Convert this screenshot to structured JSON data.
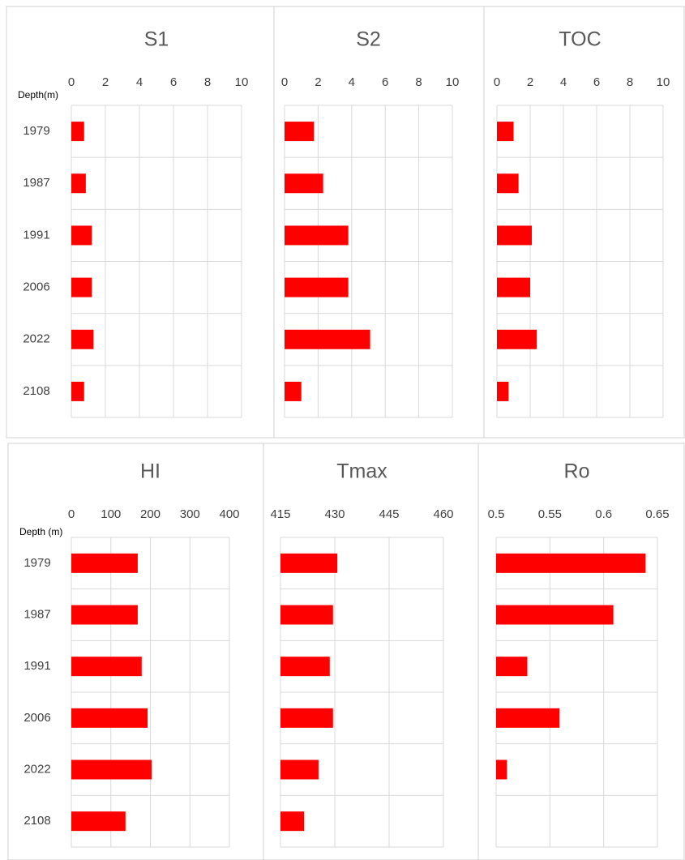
{
  "chart_data": [
    {
      "type": "bar",
      "orientation": "horizontal",
      "title": "S1",
      "y_label": "Depth(m)",
      "categories": [
        "1979",
        "1987",
        "1991",
        "2006",
        "2022",
        "2108"
      ],
      "values": [
        0.75,
        0.85,
        1.2,
        1.2,
        1.3,
        0.75
      ],
      "color": "#ff0000",
      "xlim": [
        0,
        10
      ],
      "xticks": [
        0,
        2,
        4,
        6,
        8,
        10
      ],
      "grid": true
    },
    {
      "type": "bar",
      "orientation": "horizontal",
      "title": "S2",
      "values": [
        1.75,
        2.3,
        3.8,
        3.8,
        5.1,
        1.0
      ],
      "color": "#ff0000",
      "xlim": [
        0,
        10
      ],
      "xticks": [
        0,
        2,
        4,
        6,
        8,
        10
      ],
      "grid": true
    },
    {
      "type": "bar",
      "orientation": "horizontal",
      "title": "TOC",
      "values": [
        1.0,
        1.3,
        2.1,
        2.0,
        2.4,
        0.7
      ],
      "color": "#ff0000",
      "xlim": [
        0,
        10
      ],
      "xticks": [
        0,
        2,
        4,
        6,
        8,
        10
      ],
      "grid": true
    },
    {
      "type": "bar",
      "orientation": "horizontal",
      "title": "HI",
      "y_label": "Depth (m)",
      "categories": [
        "1979",
        "1987",
        "1991",
        "2006",
        "2022",
        "2108"
      ],
      "values": [
        168,
        168,
        178,
        193,
        203,
        137
      ],
      "color": "#ff0000",
      "xlim": [
        0,
        400
      ],
      "xticks": [
        0,
        100,
        200,
        300,
        400
      ],
      "grid": true
    },
    {
      "type": "bar",
      "orientation": "horizontal",
      "title": "Tmax",
      "values": [
        430.7,
        429.5,
        428.6,
        429.5,
        425.5,
        421.5
      ],
      "color": "#ff0000",
      "xlim": [
        415,
        460
      ],
      "xticks": [
        415,
        430,
        445,
        460
      ],
      "grid": true
    },
    {
      "type": "bar",
      "orientation": "horizontal",
      "title": "Ro",
      "values": [
        0.639,
        0.609,
        0.529,
        0.559,
        0.51,
        null
      ],
      "color": "#ff0000",
      "xlim": [
        0.5,
        0.65
      ],
      "xticks": [
        0.5,
        0.55,
        0.6,
        0.65
      ],
      "grid": true
    }
  ]
}
